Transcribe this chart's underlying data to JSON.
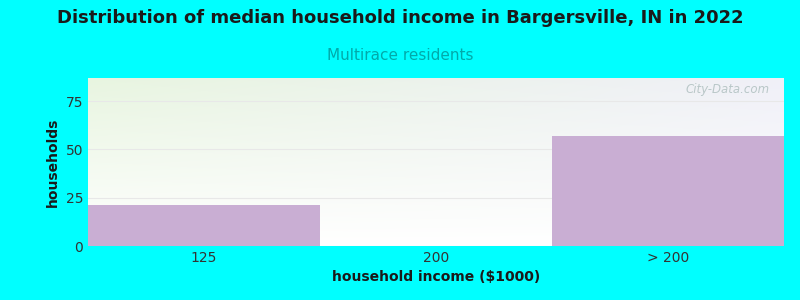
{
  "title": "Distribution of median household income in Bargersville, IN in 2022",
  "subtitle": "Multirace residents",
  "xlabel": "household income ($1000)",
  "ylabel": "households",
  "categories": [
    "125",
    "200",
    "> 200"
  ],
  "values": [
    21,
    0,
    57
  ],
  "bar_color": "#c9aed3",
  "bg_color": "#00ffff",
  "plot_bg_color_topleft": "#e8f5e0",
  "plot_bg_color_topright": "#f0f0f8",
  "plot_bg_color_bottom": "#ffffff",
  "ylim": [
    0,
    87
  ],
  "yticks": [
    0,
    25,
    50,
    75
  ],
  "title_fontsize": 13,
  "subtitle_fontsize": 11,
  "subtitle_color": "#00aaaa",
  "axis_label_fontsize": 10,
  "tick_fontsize": 10,
  "watermark": "City-Data.com",
  "watermark_color": "#b0c0c0",
  "grid_color": "#e8e8e8"
}
